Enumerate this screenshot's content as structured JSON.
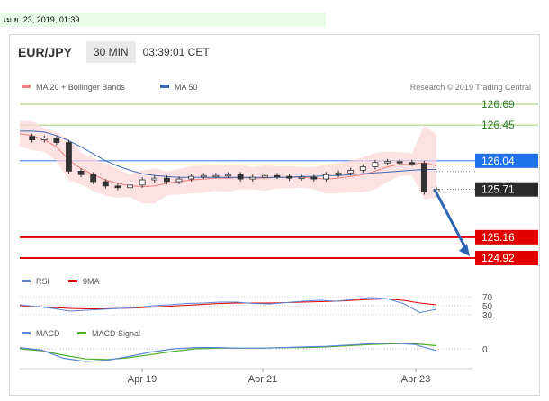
{
  "datestrip": "เม.ย. 23, 2019, 01:39",
  "header": {
    "symbol": "EUR/JPY",
    "timeframe": "30 MIN",
    "time": "03:39:01 CET"
  },
  "legend": {
    "ma20": "MA 20 + Bollinger Bands",
    "ma50": "MA 50",
    "credit": "Research © 2019 Trading Central",
    "rsi": "RSI",
    "rsi9": "9MA",
    "macd": "MACD",
    "macd_signal": "MACD Signal"
  },
  "colors": {
    "ma20": "#f08080",
    "ma50": "#3a6ab4",
    "resistance": "#9acd68",
    "support": "#e00000",
    "pivot": "#4a86e8",
    "bands": "#fbd5d5",
    "arrow": "#2f66b3"
  },
  "chart_data": [
    {
      "type": "line",
      "panel": "price",
      "x_ticks": [
        "Apr 19",
        "Apr 21",
        "Apr 23"
      ],
      "y_labels": [
        {
          "value": 126.69,
          "text": "126.69",
          "kind": "resistance"
        },
        {
          "value": 126.45,
          "text": "126.45",
          "kind": "resistance"
        },
        {
          "value": 126.04,
          "text": "126.04",
          "kind": "pivot"
        },
        {
          "value": 125.71,
          "text": "125.71",
          "kind": "last"
        },
        {
          "value": 125.16,
          "text": "125.16",
          "kind": "support"
        },
        {
          "value": 124.92,
          "text": "124.92",
          "kind": "support"
        }
      ],
      "ylim": [
        124.85,
        126.8
      ],
      "series": [
        {
          "name": "MA 20 + Bollinger Bands",
          "values": [
            126.35,
            126.33,
            126.28,
            126.2,
            126.05,
            125.95,
            125.88,
            125.82,
            125.78,
            125.75,
            125.74,
            125.75,
            125.78,
            125.8,
            125.82,
            125.83,
            125.84,
            125.84,
            125.85,
            125.84,
            125.84,
            125.85,
            125.85,
            125.85,
            125.84,
            125.83,
            125.84,
            125.86,
            125.88,
            125.92,
            125.97,
            126.0,
            126.0,
            126.02,
            125.98
          ]
        },
        {
          "name": "MA 50",
          "values": [
            126.38,
            126.38,
            126.37,
            126.33,
            126.27,
            126.2,
            126.12,
            126.04,
            125.98,
            125.93,
            125.89,
            125.87,
            125.86,
            125.85,
            125.85,
            125.85,
            125.85,
            125.85,
            125.85,
            125.85,
            125.85,
            125.85,
            125.85,
            125.86,
            125.86,
            125.87,
            125.87,
            125.88,
            125.89,
            125.9,
            125.91,
            125.92,
            125.93,
            125.94,
            125.94
          ]
        },
        {
          "name": "Close",
          "values": [
            126.32,
            126.28,
            126.3,
            126.25,
            125.92,
            125.88,
            125.8,
            125.75,
            125.73,
            125.76,
            125.82,
            125.84,
            125.8,
            125.83,
            125.86,
            125.87,
            125.87,
            125.88,
            125.83,
            125.85,
            125.87,
            125.86,
            125.84,
            125.85,
            125.83,
            125.88,
            125.9,
            125.93,
            125.97,
            126.02,
            126.03,
            126.02,
            126.01,
            125.68,
            125.71
          ]
        }
      ]
    },
    {
      "type": "line",
      "panel": "rsi",
      "y_ticks": [
        70,
        50,
        30
      ],
      "series": [
        {
          "name": "RSI",
          "values": [
            52,
            48,
            44,
            38,
            40,
            42,
            44,
            46,
            50,
            52,
            55,
            56,
            58,
            58,
            55,
            54,
            57,
            60,
            62,
            60,
            64,
            68,
            66,
            55,
            35,
            42
          ]
        },
        {
          "name": "9MA",
          "values": [
            50,
            48,
            46,
            44,
            43,
            43,
            44,
            45,
            47,
            49,
            51,
            53,
            55,
            56,
            56,
            56,
            57,
            58,
            59,
            60,
            62,
            64,
            65,
            62,
            56,
            52
          ]
        }
      ]
    },
    {
      "type": "line",
      "panel": "macd",
      "y_ticks": [
        0
      ],
      "series": [
        {
          "name": "MACD",
          "values": [
            0.02,
            -0.02,
            -0.15,
            -0.2,
            -0.18,
            -0.12,
            -0.05,
            0.0,
            0.02,
            0.02,
            0.01,
            0.01,
            0.02,
            0.03,
            0.04,
            0.06,
            0.08,
            0.09,
            0.07,
            -0.03
          ]
        },
        {
          "name": "MACD Signal",
          "values": [
            0.0,
            -0.03,
            -0.1,
            -0.16,
            -0.17,
            -0.14,
            -0.09,
            -0.04,
            0.0,
            0.01,
            0.01,
            0.01,
            0.02,
            0.02,
            0.03,
            0.05,
            0.07,
            0.08,
            0.08,
            0.05
          ]
        }
      ]
    }
  ]
}
